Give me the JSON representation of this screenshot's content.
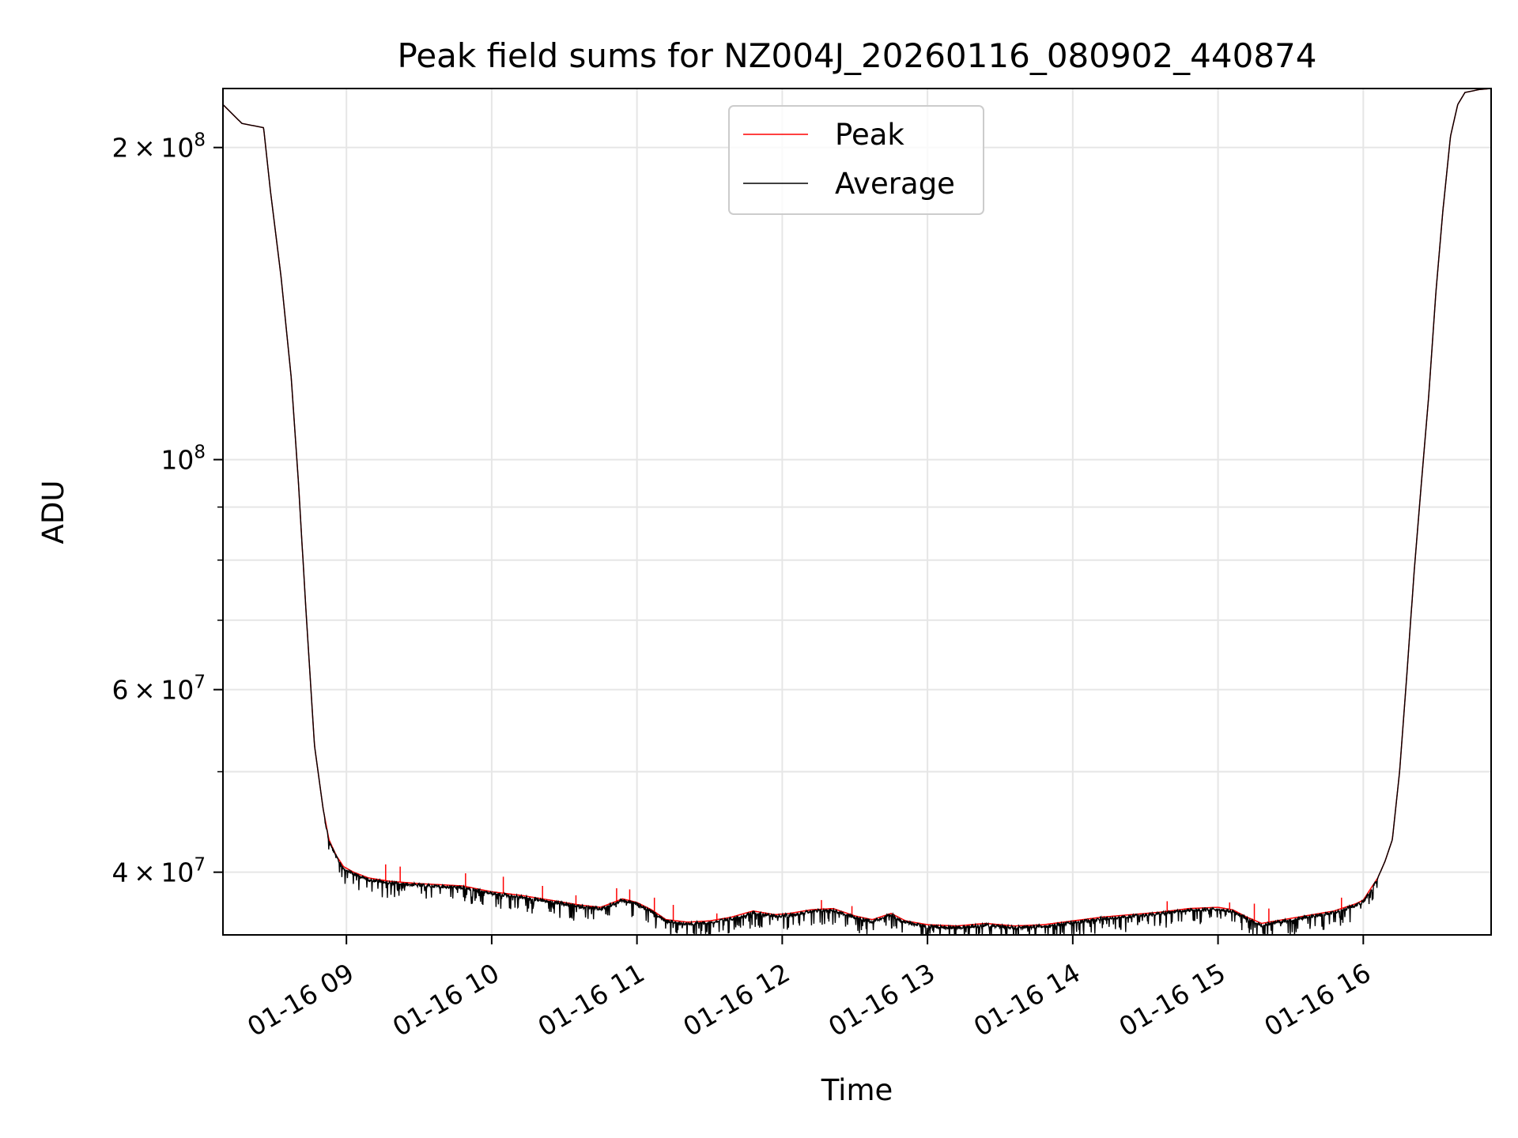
{
  "chart_data": {
    "type": "line",
    "title": "Peak field sums for NZ004J_20260116_080902_440874",
    "xlabel": "Time",
    "ylabel": "ADU",
    "x_unit": "hours (decimal) on 2026-01-16",
    "xlim": [
      8.15,
      16.88
    ],
    "yscale": "log",
    "ylim": [
      34800000,
      228000000
    ],
    "grid": true,
    "legend_position": "top-center",
    "x_ticks": [
      {
        "value": 9,
        "label": "01-16 09"
      },
      {
        "value": 10,
        "label": "01-16 10"
      },
      {
        "value": 11,
        "label": "01-16 11"
      },
      {
        "value": 12,
        "label": "01-16 12"
      },
      {
        "value": 13,
        "label": "01-16 13"
      },
      {
        "value": 14,
        "label": "01-16 14"
      },
      {
        "value": 15,
        "label": "01-16 15"
      },
      {
        "value": 16,
        "label": "01-16 16"
      }
    ],
    "y_major_ticks": [
      {
        "value": 40000000,
        "mantissa": "4",
        "times": "×",
        "base": "10",
        "exponent": "7"
      },
      {
        "value": 60000000,
        "mantissa": "6",
        "times": "×",
        "base": "10",
        "exponent": "7"
      },
      {
        "value": 100000000,
        "mantissa": "",
        "times": "",
        "base": "10",
        "exponent": "8"
      },
      {
        "value": 200000000,
        "mantissa": "2",
        "times": "×",
        "base": "10",
        "exponent": "8"
      }
    ],
    "y_minor_ticks": [
      50000000,
      70000000,
      80000000,
      90000000
    ],
    "series": [
      {
        "name": "Peak",
        "color": "#ff0000",
        "x": [
          8.15,
          8.28,
          8.43,
          8.48,
          8.55,
          8.62,
          8.67,
          8.72,
          8.78,
          8.84,
          8.88,
          8.93,
          8.98,
          9.05,
          9.15,
          9.3,
          9.5,
          9.8,
          10.0,
          10.2,
          10.4,
          10.6,
          10.75,
          10.9,
          11.0,
          11.1,
          11.2,
          11.35,
          11.5,
          11.65,
          11.8,
          11.95,
          12.05,
          12.2,
          12.35,
          12.5,
          12.62,
          12.75,
          12.85,
          13.0,
          13.2,
          13.4,
          13.6,
          13.8,
          14.0,
          14.2,
          14.4,
          14.6,
          14.8,
          15.0,
          15.1,
          15.2,
          15.3,
          15.45,
          15.6,
          15.8,
          15.95,
          16.0,
          16.1,
          16.15,
          16.2,
          16.25,
          16.3,
          16.35,
          16.4,
          16.45,
          16.5,
          16.55,
          16.6,
          16.65,
          16.7,
          16.8,
          16.88
        ],
        "y": [
          220000000,
          211000000,
          209000000,
          180000000,
          150000000,
          120000000,
          95000000,
          72000000,
          53000000,
          46000000,
          43000000,
          41500000,
          40500000,
          40000000,
          39500000,
          39200000,
          39000000,
          38800000,
          38300000,
          38000000,
          37600000,
          37200000,
          37000000,
          37700000,
          37400000,
          36800000,
          36000000,
          35800000,
          35900000,
          36200000,
          36700000,
          36400000,
          36500000,
          36800000,
          36900000,
          36300000,
          36000000,
          36500000,
          35900000,
          35600000,
          35500000,
          35700000,
          35500000,
          35600000,
          35900000,
          36200000,
          36400000,
          36600000,
          36900000,
          37000000,
          36800000,
          36200000,
          35700000,
          36000000,
          36300000,
          36700000,
          37300000,
          37600000,
          39500000,
          41000000,
          43000000,
          50000000,
          62000000,
          78000000,
          95000000,
          115000000,
          145000000,
          175000000,
          205000000,
          220000000,
          226000000,
          227500000,
          228000000
        ],
        "spikes": [
          {
            "x": 9.27,
            "y": 40700000
          },
          {
            "x": 9.37,
            "y": 40500000
          },
          {
            "x": 9.82,
            "y": 39900000
          },
          {
            "x": 10.08,
            "y": 39600000
          },
          {
            "x": 10.35,
            "y": 38800000
          },
          {
            "x": 10.58,
            "y": 38000000
          },
          {
            "x": 10.86,
            "y": 38600000
          },
          {
            "x": 10.95,
            "y": 38500000
          },
          {
            "x": 11.12,
            "y": 37800000
          },
          {
            "x": 11.25,
            "y": 37200000
          },
          {
            "x": 11.55,
            "y": 36500000
          },
          {
            "x": 12.27,
            "y": 37600000
          },
          {
            "x": 12.48,
            "y": 37100000
          },
          {
            "x": 14.65,
            "y": 37500000
          },
          {
            "x": 15.08,
            "y": 37400000
          },
          {
            "x": 15.25,
            "y": 37300000
          },
          {
            "x": 15.35,
            "y": 36900000
          },
          {
            "x": 15.85,
            "y": 37800000
          }
        ]
      },
      {
        "name": "Average",
        "color": "#000000",
        "x": [
          8.15,
          8.28,
          8.43,
          8.48,
          8.55,
          8.62,
          8.67,
          8.72,
          8.78,
          8.84,
          8.88,
          8.93,
          8.98,
          9.05,
          9.15,
          9.3,
          9.5,
          9.8,
          10.0,
          10.2,
          10.4,
          10.6,
          10.75,
          10.9,
          11.0,
          11.1,
          11.2,
          11.35,
          11.5,
          11.65,
          11.8,
          11.95,
          12.05,
          12.2,
          12.35,
          12.5,
          12.62,
          12.75,
          12.85,
          13.0,
          13.2,
          13.4,
          13.6,
          13.8,
          14.0,
          14.2,
          14.4,
          14.6,
          14.8,
          15.0,
          15.1,
          15.2,
          15.3,
          15.45,
          15.6,
          15.8,
          15.95,
          16.0,
          16.1,
          16.15,
          16.2,
          16.25,
          16.3,
          16.35,
          16.4,
          16.45,
          16.5,
          16.55,
          16.6,
          16.65,
          16.7,
          16.8,
          16.88
        ],
        "y": [
          220000000,
          211000000,
          209000000,
          180000000,
          150000000,
          120000000,
          95000000,
          72000000,
          53000000,
          46000000,
          43000000,
          41500000,
          40500000,
          40000000,
          39500000,
          39200000,
          39000000,
          38800000,
          38300000,
          38000000,
          37600000,
          37200000,
          37000000,
          37700000,
          37400000,
          36800000,
          36000000,
          35800000,
          35900000,
          36200000,
          36700000,
          36400000,
          36500000,
          36800000,
          36900000,
          36300000,
          36000000,
          36500000,
          35900000,
          35600000,
          35500000,
          35700000,
          35500000,
          35600000,
          35900000,
          36200000,
          36400000,
          36600000,
          36900000,
          37000000,
          36800000,
          36200000,
          35700000,
          36000000,
          36300000,
          36700000,
          37300000,
          37600000,
          39500000,
          41000000,
          43000000,
          50000000,
          62000000,
          78000000,
          95000000,
          115000000,
          145000000,
          175000000,
          205000000,
          220000000,
          226000000,
          227500000,
          228000000
        ],
        "noise_range": [
          8.85,
          16.1
        ],
        "noise_amplitude": 0.025
      }
    ]
  }
}
